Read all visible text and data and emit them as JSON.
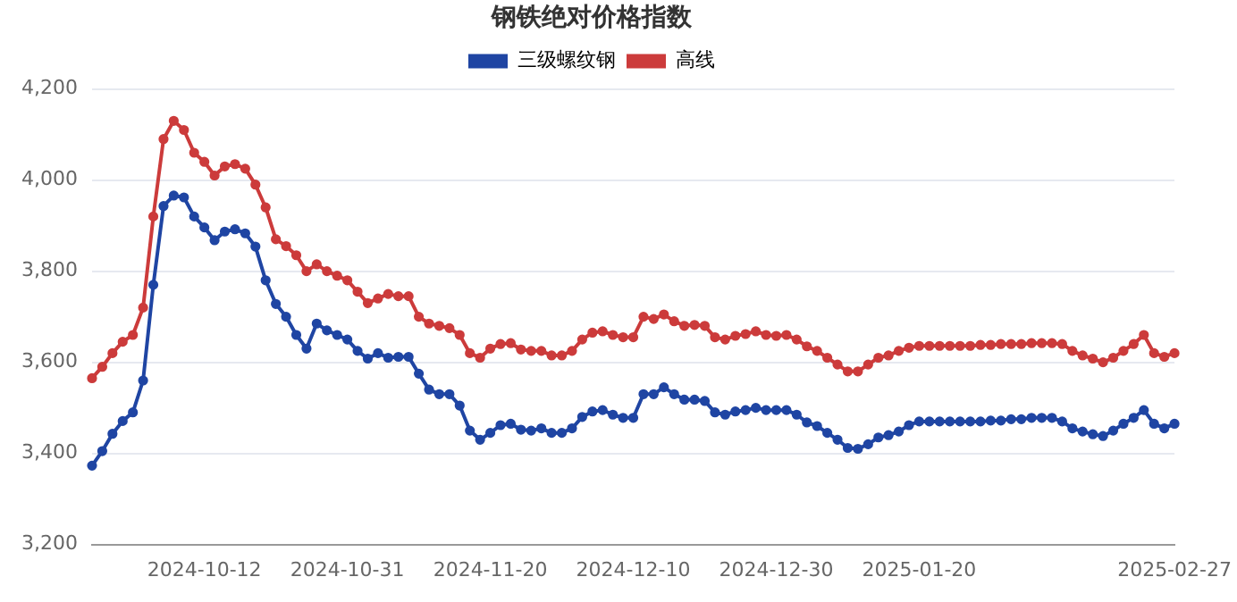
{
  "chart_data": {
    "type": "line",
    "title": "钢铁绝对价格指数",
    "categories": [
      null,
      null,
      null,
      null,
      null,
      null,
      null,
      null,
      null,
      null,
      null,
      "2024-10-12",
      null,
      null,
      null,
      null,
      null,
      null,
      null,
      null,
      null,
      null,
      null,
      null,
      null,
      "2024-10-31",
      null,
      null,
      null,
      null,
      null,
      null,
      null,
      null,
      null,
      null,
      null,
      null,
      null,
      "2024-11-20",
      null,
      null,
      null,
      null,
      null,
      null,
      null,
      null,
      null,
      null,
      null,
      null,
      null,
      "2024-12-10",
      null,
      null,
      null,
      null,
      null,
      null,
      null,
      null,
      null,
      null,
      null,
      null,
      null,
      "2024-12-30",
      null,
      null,
      null,
      null,
      null,
      null,
      null,
      null,
      null,
      null,
      null,
      null,
      null,
      "2025-01-20",
      null,
      null,
      null,
      null,
      null,
      null,
      null,
      null,
      null,
      null,
      null,
      null,
      null,
      null,
      null,
      null,
      null,
      null,
      null,
      null,
      null,
      null,
      null,
      null,
      "2025-02-27"
    ],
    "series": [
      {
        "name": "三级螺纹钢",
        "color": "#1f45a3",
        "values": [
          3373,
          3405,
          3443,
          3471,
          3490,
          3560,
          3770,
          3943,
          3966,
          3962,
          3920,
          3896,
          3868,
          3887,
          3892,
          3883,
          3854,
          3780,
          3728,
          3700,
          3660,
          3630,
          3685,
          3670,
          3660,
          3650,
          3625,
          3608,
          3620,
          3610,
          3612,
          3612,
          3575,
          3540,
          3530,
          3530,
          3505,
          3450,
          3430,
          3445,
          3462,
          3465,
          3452,
          3450,
          3455,
          3445,
          3445,
          3455,
          3480,
          3492,
          3495,
          3485,
          3478,
          3478,
          3530,
          3530,
          3545,
          3530,
          3518,
          3518,
          3515,
          3490,
          3485,
          3492,
          3495,
          3500,
          3495,
          3495,
          3495,
          3485,
          3468,
          3460,
          3445,
          3430,
          3412,
          3410,
          3420,
          3435,
          3440,
          3448,
          3462,
          3470,
          3470,
          3470,
          3470,
          3470,
          3470,
          3470,
          3472,
          3472,
          3475,
          3475,
          3478,
          3478,
          3478,
          3470,
          3455,
          3448,
          3442,
          3438,
          3450,
          3465,
          3478,
          3495,
          3465,
          3455,
          3465
        ]
      },
      {
        "name": "高线",
        "color": "#cc3b3b",
        "values": [
          3565,
          3590,
          3620,
          3645,
          3660,
          3720,
          3920,
          4090,
          4130,
          4110,
          4060,
          4040,
          4010,
          4030,
          4035,
          4025,
          3990,
          3940,
          3870,
          3855,
          3835,
          3800,
          3815,
          3800,
          3790,
          3780,
          3755,
          3730,
          3740,
          3750,
          3745,
          3745,
          3700,
          3685,
          3680,
          3675,
          3660,
          3620,
          3610,
          3630,
          3640,
          3642,
          3628,
          3625,
          3625,
          3615,
          3615,
          3625,
          3650,
          3665,
          3668,
          3660,
          3655,
          3655,
          3700,
          3695,
          3705,
          3690,
          3680,
          3682,
          3680,
          3655,
          3650,
          3658,
          3662,
          3668,
          3660,
          3658,
          3660,
          3650,
          3635,
          3625,
          3610,
          3595,
          3580,
          3580,
          3595,
          3610,
          3615,
          3625,
          3632,
          3636,
          3636,
          3636,
          3636,
          3636,
          3636,
          3638,
          3638,
          3640,
          3640,
          3640,
          3642,
          3642,
          3642,
          3640,
          3625,
          3615,
          3608,
          3600,
          3610,
          3625,
          3640,
          3660,
          3620,
          3612,
          3620
        ]
      }
    ],
    "ylim": [
      3200,
      4200
    ],
    "yticks": [
      {
        "value": 3200,
        "label": "3,200"
      },
      {
        "value": 3400,
        "label": "3,400"
      },
      {
        "value": 3600,
        "label": "3,600"
      },
      {
        "value": 3800,
        "label": "3,800"
      },
      {
        "value": 4000,
        "label": "4,000"
      },
      {
        "value": 4200,
        "label": "4,200"
      }
    ],
    "grid": "y",
    "legend": "top",
    "marker": "circle",
    "line_style": "solid"
  }
}
